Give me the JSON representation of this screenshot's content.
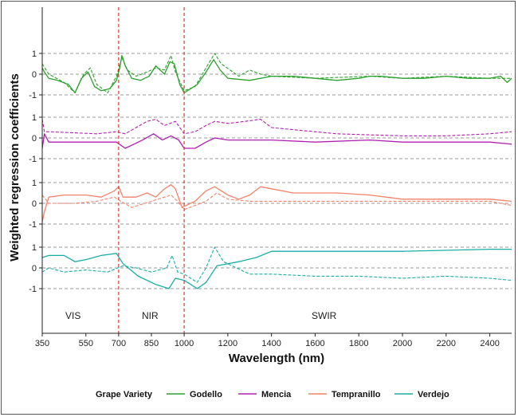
{
  "chart_data": {
    "type": "line",
    "title": "",
    "xlabel": "Wavelength (nm)",
    "ylabel": "Weighted regression coefficients",
    "xlim": [
      350,
      2500
    ],
    "x_ticks": [
      350,
      550,
      700,
      850,
      1000,
      1200,
      1400,
      1600,
      1800,
      2000,
      2200,
      2400
    ],
    "y_tick_labels": [
      "1",
      "0",
      "-1"
    ],
    "grid": "dashed horizontal lines at 1, 0 and -1 in each panel",
    "region_boundaries": [
      700,
      1000
    ],
    "regions": [
      "VIS",
      "NIR",
      "SWIR"
    ],
    "legend_title": "Grape Variety",
    "legend_position": "bottom",
    "panels": [
      {
        "variety": "Godello",
        "color": "#2ca02c",
        "solid": [
          [
            350,
            0.3
          ],
          [
            360,
            0.1
          ],
          [
            380,
            -0.2
          ],
          [
            420,
            -0.3
          ],
          [
            470,
            -0.5
          ],
          [
            500,
            -0.9
          ],
          [
            530,
            -0.2
          ],
          [
            560,
            0.1
          ],
          [
            590,
            -0.6
          ],
          [
            620,
            -0.8
          ],
          [
            660,
            -0.7
          ],
          [
            690,
            -0.3
          ],
          [
            705,
            0.3
          ],
          [
            715,
            0.9
          ],
          [
            730,
            0.4
          ],
          [
            760,
            -0.2
          ],
          [
            800,
            -0.3
          ],
          [
            840,
            -0.1
          ],
          [
            870,
            0.4
          ],
          [
            890,
            0.2
          ],
          [
            910,
            0.0
          ],
          [
            935,
            0.6
          ],
          [
            955,
            0.5
          ],
          [
            980,
            -0.5
          ],
          [
            1000,
            -0.9
          ],
          [
            1030,
            -0.7
          ],
          [
            1060,
            -0.5
          ],
          [
            1100,
            0.1
          ],
          [
            1135,
            0.7
          ],
          [
            1165,
            0.2
          ],
          [
            1200,
            -0.2
          ],
          [
            1300,
            -0.3
          ],
          [
            1400,
            -0.1
          ],
          [
            1500,
            -0.1
          ],
          [
            1600,
            -0.2
          ],
          [
            1700,
            -0.3
          ],
          [
            1800,
            -0.2
          ],
          [
            1850,
            -0.1
          ],
          [
            1900,
            -0.1
          ],
          [
            2000,
            -0.2
          ],
          [
            2100,
            -0.2
          ],
          [
            2200,
            -0.1
          ],
          [
            2300,
            -0.2
          ],
          [
            2400,
            -0.2
          ],
          [
            2450,
            -0.1
          ],
          [
            2480,
            -0.4
          ],
          [
            2500,
            -0.2
          ]
        ],
        "dashed": [
          [
            350,
            0.5
          ],
          [
            380,
            0.0
          ],
          [
            450,
            -0.4
          ],
          [
            500,
            -0.9
          ],
          [
            540,
            0.0
          ],
          [
            570,
            0.3
          ],
          [
            600,
            -0.5
          ],
          [
            650,
            -0.9
          ],
          [
            690,
            -0.1
          ],
          [
            715,
            0.8
          ],
          [
            740,
            0.2
          ],
          [
            780,
            -0.1
          ],
          [
            830,
            0.1
          ],
          [
            870,
            0.3
          ],
          [
            910,
            0.2
          ],
          [
            940,
            0.9
          ],
          [
            960,
            0.1
          ],
          [
            1000,
            -0.8
          ],
          [
            1050,
            -0.6
          ],
          [
            1100,
            0.3
          ],
          [
            1140,
            1.0
          ],
          [
            1170,
            0.5
          ],
          [
            1250,
            -0.1
          ],
          [
            1300,
            0.2
          ],
          [
            1350,
            0.0
          ],
          [
            1400,
            -0.1
          ],
          [
            1600,
            -0.2
          ],
          [
            1850,
            -0.1
          ],
          [
            2000,
            -0.2
          ],
          [
            2200,
            -0.1
          ],
          [
            2400,
            -0.2
          ],
          [
            2500,
            -0.2
          ]
        ]
      },
      {
        "variety": "Mencia",
        "color": "#b020b0",
        "solid": [
          [
            350,
            -0.5
          ],
          [
            360,
            0.2
          ],
          [
            380,
            -0.2
          ],
          [
            450,
            -0.2
          ],
          [
            600,
            -0.2
          ],
          [
            690,
            -0.2
          ],
          [
            730,
            -0.5
          ],
          [
            770,
            -0.3
          ],
          [
            810,
            -0.1
          ],
          [
            860,
            0.2
          ],
          [
            900,
            -0.1
          ],
          [
            940,
            0.1
          ],
          [
            975,
            -0.1
          ],
          [
            1000,
            -0.5
          ],
          [
            1050,
            -0.5
          ],
          [
            1100,
            -0.2
          ],
          [
            1140,
            0.0
          ],
          [
            1200,
            -0.1
          ],
          [
            1400,
            -0.1
          ],
          [
            1600,
            -0.2
          ],
          [
            1850,
            -0.1
          ],
          [
            2000,
            -0.2
          ],
          [
            2200,
            -0.2
          ],
          [
            2400,
            -0.2
          ],
          [
            2500,
            -0.3
          ]
        ],
        "dashed": [
          [
            350,
            0.9
          ],
          [
            360,
            0.3
          ],
          [
            380,
            0.3
          ],
          [
            600,
            0.2
          ],
          [
            690,
            0.3
          ],
          [
            730,
            0.2
          ],
          [
            780,
            0.5
          ],
          [
            830,
            0.8
          ],
          [
            870,
            0.9
          ],
          [
            910,
            0.6
          ],
          [
            960,
            0.8
          ],
          [
            1000,
            0.2
          ],
          [
            1050,
            0.3
          ],
          [
            1100,
            0.6
          ],
          [
            1140,
            0.8
          ],
          [
            1200,
            0.7
          ],
          [
            1280,
            0.8
          ],
          [
            1350,
            0.9
          ],
          [
            1400,
            0.5
          ],
          [
            1500,
            0.4
          ],
          [
            1700,
            0.2
          ],
          [
            2000,
            0.1
          ],
          [
            2200,
            0.1
          ],
          [
            2400,
            0.2
          ],
          [
            2500,
            0.3
          ]
        ]
      },
      {
        "variety": "Tempranillo",
        "color": "#f4826b",
        "solid": [
          [
            350,
            -0.9
          ],
          [
            360,
            -0.4
          ],
          [
            380,
            0.3
          ],
          [
            450,
            0.4
          ],
          [
            550,
            0.4
          ],
          [
            620,
            0.3
          ],
          [
            680,
            0.6
          ],
          [
            700,
            0.8
          ],
          [
            720,
            0.3
          ],
          [
            780,
            0.3
          ],
          [
            830,
            0.5
          ],
          [
            870,
            0.3
          ],
          [
            910,
            0.7
          ],
          [
            940,
            0.9
          ],
          [
            960,
            0.7
          ],
          [
            990,
            -0.2
          ],
          [
            1050,
            0.1
          ],
          [
            1100,
            0.6
          ],
          [
            1140,
            0.8
          ],
          [
            1200,
            0.4
          ],
          [
            1250,
            0.2
          ],
          [
            1300,
            0.4
          ],
          [
            1350,
            0.8
          ],
          [
            1400,
            0.7
          ],
          [
            1500,
            0.5
          ],
          [
            1700,
            0.5
          ],
          [
            1850,
            0.4
          ],
          [
            2000,
            0.2
          ],
          [
            2200,
            0.2
          ],
          [
            2400,
            0.2
          ],
          [
            2500,
            0.1
          ]
        ],
        "dashed": [
          [
            350,
            0.4
          ],
          [
            380,
            0.0
          ],
          [
            500,
            0.0
          ],
          [
            600,
            0.1
          ],
          [
            680,
            0.3
          ],
          [
            710,
            0.1
          ],
          [
            760,
            -0.2
          ],
          [
            820,
            0.0
          ],
          [
            880,
            0.2
          ],
          [
            940,
            0.4
          ],
          [
            970,
            0.1
          ],
          [
            1000,
            -0.3
          ],
          [
            1050,
            -0.1
          ],
          [
            1100,
            0.1
          ],
          [
            1150,
            0.5
          ],
          [
            1200,
            0.2
          ],
          [
            1300,
            0.1
          ],
          [
            1500,
            0.1
          ],
          [
            1800,
            0.1
          ],
          [
            2000,
            0.1
          ],
          [
            2400,
            0.1
          ],
          [
            2500,
            -0.1
          ]
        ]
      },
      {
        "variety": "Verdejo",
        "color": "#1aada5",
        "solid": [
          [
            350,
            0.5
          ],
          [
            380,
            0.6
          ],
          [
            450,
            0.6
          ],
          [
            500,
            0.3
          ],
          [
            550,
            0.4
          ],
          [
            620,
            0.6
          ],
          [
            690,
            0.7
          ],
          [
            720,
            0.2
          ],
          [
            790,
            -0.4
          ],
          [
            870,
            -0.8
          ],
          [
            930,
            -1.0
          ],
          [
            960,
            -0.5
          ],
          [
            1000,
            -0.6
          ],
          [
            1060,
            -1.0
          ],
          [
            1100,
            -0.7
          ],
          [
            1150,
            0.1
          ],
          [
            1250,
            0.3
          ],
          [
            1330,
            0.5
          ],
          [
            1400,
            0.8
          ],
          [
            1600,
            0.8
          ],
          [
            2000,
            0.8
          ],
          [
            2400,
            0.9
          ],
          [
            2500,
            0.9
          ]
        ],
        "dashed": [
          [
            350,
            -0.2
          ],
          [
            380,
            0.0
          ],
          [
            450,
            -0.2
          ],
          [
            550,
            -0.1
          ],
          [
            650,
            -0.2
          ],
          [
            720,
            0.1
          ],
          [
            780,
            0.0
          ],
          [
            850,
            -0.2
          ],
          [
            920,
            0.0
          ],
          [
            945,
            0.6
          ],
          [
            970,
            -0.2
          ],
          [
            1000,
            -0.3
          ],
          [
            1060,
            -0.7
          ],
          [
            1100,
            0.0
          ],
          [
            1140,
            1.0
          ],
          [
            1180,
            0.3
          ],
          [
            1240,
            0.0
          ],
          [
            1300,
            -0.3
          ],
          [
            1400,
            -0.3
          ],
          [
            1600,
            -0.4
          ],
          [
            1800,
            -0.4
          ],
          [
            2000,
            -0.5
          ],
          [
            2200,
            -0.4
          ],
          [
            2400,
            -0.5
          ],
          [
            2500,
            -0.6
          ]
        ]
      }
    ]
  }
}
